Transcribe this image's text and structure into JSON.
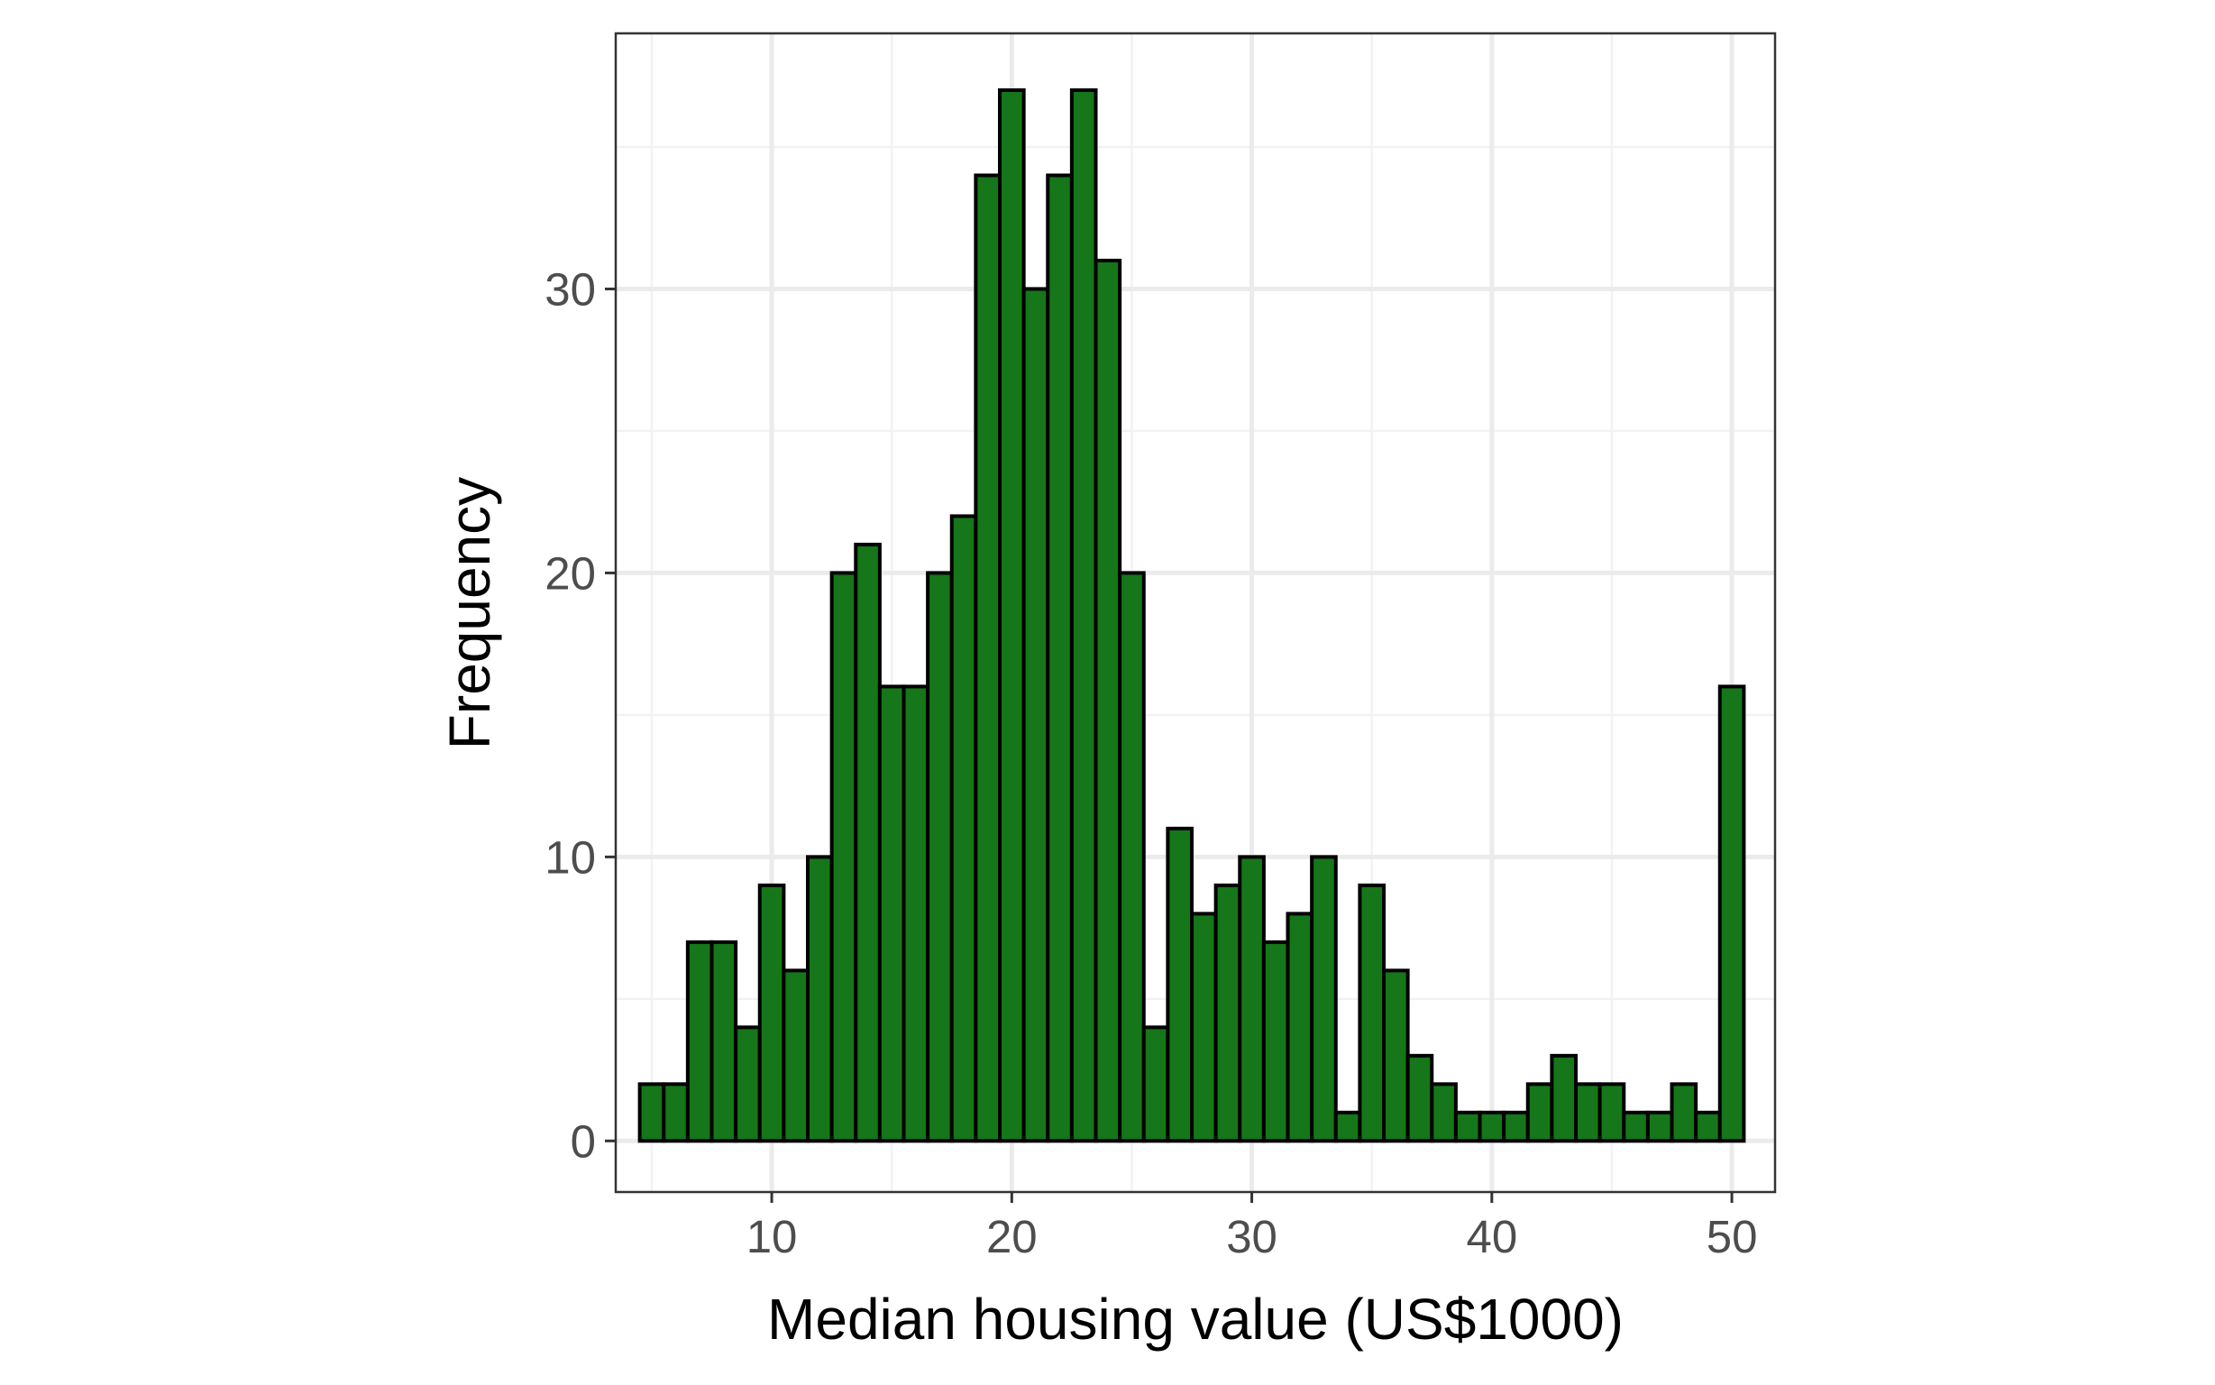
{
  "chart_data": {
    "type": "bar",
    "subtype": "histogram",
    "title": "",
    "xlabel": "Median housing value (US$1000)",
    "ylabel": "Frequency",
    "xlim": [
      3.5,
      51.8
    ],
    "ylim": [
      -1.8,
      39.0
    ],
    "x_ticks": [
      10,
      20,
      30,
      40,
      50
    ],
    "x_tick_labels": [
      "10",
      "20",
      "30",
      "40",
      "50"
    ],
    "x_minor_ticks": [
      5,
      15,
      25,
      35,
      45
    ],
    "y_ticks": [
      0,
      10,
      20,
      30
    ],
    "y_tick_labels": [
      "0",
      "10",
      "20",
      "30"
    ],
    "y_minor_ticks": [
      5,
      15,
      25,
      35
    ],
    "grid": true,
    "legend": "none",
    "bin_width": 1.0,
    "bins_start": 4.5,
    "values": [
      2,
      2,
      7,
      7,
      4,
      9,
      6,
      10,
      20,
      21,
      16,
      16,
      20,
      22,
      34,
      37,
      30,
      34,
      37,
      31,
      20,
      4,
      11,
      8,
      9,
      10,
      7,
      8,
      10,
      1,
      9,
      6,
      3,
      2,
      1,
      1,
      1,
      2,
      3,
      2,
      2,
      1,
      1,
      2,
      1,
      16
    ],
    "colors": {
      "bar_fill": "#15761a",
      "bar_stroke": "#000000",
      "panel_border": "#333333",
      "grid_major": "#ebebeb",
      "grid_minor": "#f2f2f2",
      "tick_label": "#4d4d4d",
      "axis_title": "#000000"
    }
  }
}
